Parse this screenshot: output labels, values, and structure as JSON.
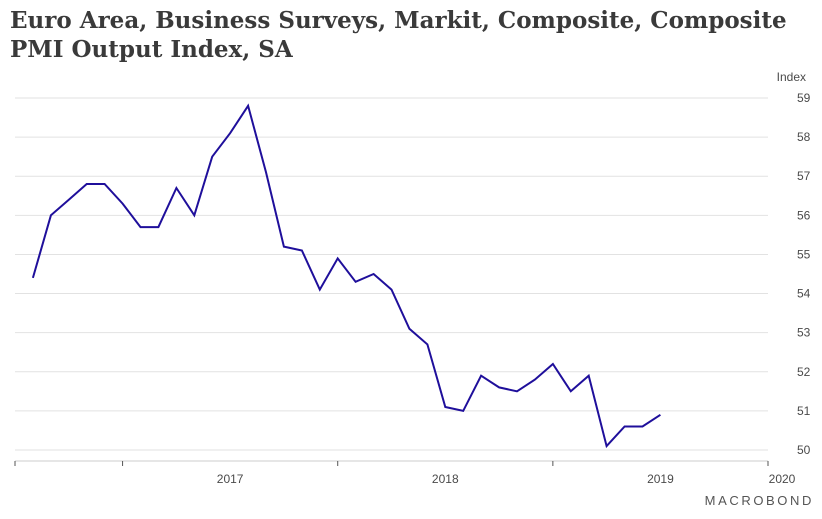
{
  "title": "Euro Area, Business Surveys, Markit, Composite, Composite PMI Output Index, SA",
  "logo": "MACROBOND",
  "colors": {
    "line": "#1f0f9b",
    "grid": "#e2e2e2",
    "text": "#3a3a3a"
  },
  "chart_data": {
    "type": "line",
    "title": "Euro Area, Business Surveys, Markit, Composite, Composite PMI Output Index, SA",
    "ylabel": "Index",
    "y_axis_position": "right",
    "ylim": [
      50,
      59
    ],
    "yticks": [
      50,
      51,
      52,
      53,
      54,
      55,
      56,
      57,
      58,
      59
    ],
    "xlim": [
      "2016-07",
      "2020-01"
    ],
    "xtick_labels": [
      "2017",
      "2018",
      "2019",
      "2020"
    ],
    "grid": true,
    "legend": "none",
    "series": [
      {
        "x": [
          "2016-08",
          "2016-09",
          "2016-10",
          "2016-11",
          "2016-12",
          "2017-01",
          "2017-02",
          "2017-03",
          "2017-04",
          "2017-05",
          "2017-06",
          "2017-07",
          "2017-08",
          "2017-09",
          "2017-10",
          "2017-11",
          "2017-12",
          "2018-01",
          "2018-02",
          "2018-03",
          "2018-04",
          "2018-05",
          "2018-06",
          "2018-07",
          "2018-08",
          "2018-09",
          "2018-10",
          "2018-11",
          "2018-12",
          "2019-01",
          "2019-02",
          "2019-03",
          "2019-04",
          "2019-05",
          "2019-06",
          "2019-07",
          "2019-08",
          "2019-09",
          "2019-10",
          "2019-11",
          "2019-12"
        ],
        "values": [
          54.4,
          56.0,
          56.4,
          56.8,
          56.8,
          56.3,
          55.7,
          55.7,
          56.7,
          56.0,
          57.5,
          58.1,
          58.8,
          57.1,
          55.2,
          55.1,
          54.1,
          54.9,
          54.3,
          54.5,
          54.1,
          53.1,
          52.7,
          51.1,
          51.0,
          51.9,
          51.6,
          51.5,
          51.8,
          52.2,
          51.5,
          51.9,
          50.1,
          50.6,
          50.6,
          50.9,
          null,
          null,
          null,
          null,
          null
        ]
      }
    ]
  }
}
